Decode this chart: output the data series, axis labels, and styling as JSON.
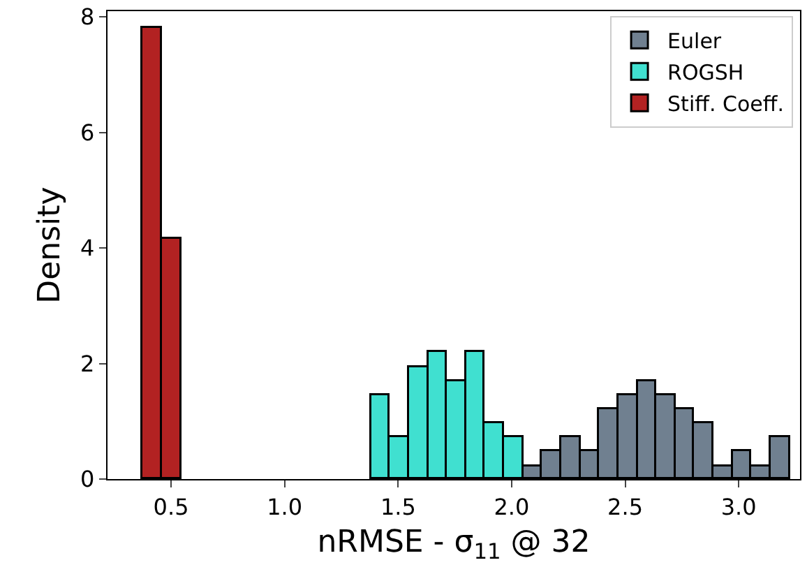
{
  "chart_data": {
    "type": "histogram",
    "xlabel": "nRMSE - σ$_{11}$ @ 32",
    "ylabel": "Density",
    "bins": [
      0.375,
      0.459,
      0.543,
      0.626,
      0.71,
      0.794,
      0.878,
      0.962,
      1.045,
      1.129,
      1.213,
      1.297,
      1.381,
      1.464,
      1.548,
      1.632,
      1.716,
      1.8,
      1.883,
      1.967,
      2.051,
      2.135,
      2.219,
      2.302,
      2.386,
      2.47,
      2.554,
      2.638,
      2.721,
      2.805,
      2.889,
      2.973,
      3.057,
      3.14,
      3.224
    ],
    "series": [
      {
        "name": "Euler",
        "color": "#708090",
        "values": [
          null,
          null,
          null,
          null,
          null,
          null,
          null,
          null,
          null,
          null,
          null,
          null,
          null,
          null,
          null,
          null,
          null,
          null,
          null,
          null,
          0.22,
          0.48,
          0.72,
          0.48,
          1.22,
          1.45,
          1.7,
          1.45,
          1.22,
          0.97,
          0.22,
          0.48,
          0.22,
          0.72
        ]
      },
      {
        "name": "ROGSH",
        "color": "#40e0d0",
        "values": [
          null,
          null,
          null,
          null,
          null,
          null,
          null,
          null,
          null,
          null,
          null,
          null,
          1.45,
          0.72,
          1.94,
          2.19,
          1.7,
          2.19,
          0.97,
          0.72,
          null,
          null,
          null,
          null,
          null,
          null,
          null,
          null,
          null,
          null,
          null,
          null,
          null,
          null
        ]
      },
      {
        "name": "Stiff. Coeff.",
        "color": "#b22222",
        "values": [
          7.8,
          4.15,
          null,
          null,
          null,
          null,
          null,
          null,
          null,
          null,
          null,
          null,
          null,
          null,
          null,
          null,
          null,
          null,
          null,
          null,
          null,
          null,
          null,
          null,
          null,
          null,
          null,
          null,
          null,
          null,
          null,
          null,
          null,
          null
        ]
      }
    ],
    "xlim": [
      0.22,
      3.27
    ],
    "xticks": [
      0.5,
      {
        "value": 1,
        "label": "1.0"
      },
      1.5,
      {
        "value": 2,
        "label": "2.0"
      },
      2.5,
      {
        "value": 3,
        "label": "3.0"
      }
    ],
    "ylim": [
      0,
      8.1
    ],
    "yticks": [
      0,
      2,
      4,
      6,
      8
    ],
    "grid": false,
    "legend": "top right"
  }
}
